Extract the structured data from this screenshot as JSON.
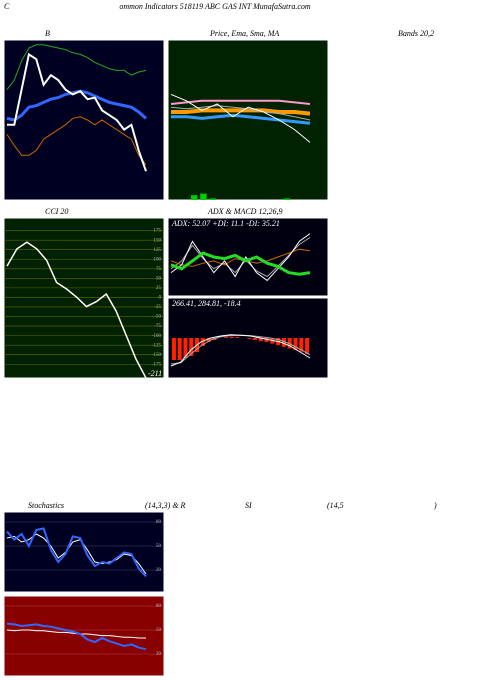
{
  "texts": {
    "c": "C",
    "title": "ommon Indicators 518119 ABC GAS INT MunafaSutra.com",
    "b": "B",
    "ma": "Price, Ema, Sma, MA",
    "bands": "Bands 20,2",
    "cci": "CCI 20",
    "adx": "ADX  & MACD 12,26,9",
    "stoch": "Stochastics",
    "stoch_p": "(14,3,3) & R",
    "si": "SI",
    "rsi_p": "(14,5",
    "close": ")",
    "watermark": "MunafaSutra.com"
  },
  "chart_data": [
    {
      "type": "line",
      "bg": "#000022",
      "ylim": [
        0,
        100
      ],
      "series": [
        {
          "color": "#22aa22",
          "width": 1,
          "values": [
            69,
            75,
            87,
            95,
            97,
            97,
            96,
            95,
            94,
            92,
            91,
            89,
            86,
            84,
            82,
            81,
            81,
            78,
            80,
            81
          ]
        },
        {
          "color": "#3366ff",
          "width": 3,
          "values": [
            51,
            50,
            53,
            58,
            59,
            61,
            63,
            64,
            66,
            67,
            68,
            67,
            65,
            63,
            61,
            60,
            59,
            58,
            55,
            51
          ]
        },
        {
          "color": "#cc6600",
          "width": 1,
          "values": [
            41,
            34,
            28,
            28,
            31,
            38,
            41,
            44,
            47,
            51,
            52,
            50,
            47,
            50,
            47,
            44,
            41,
            38,
            28,
            22
          ]
        },
        {
          "color": "#ffffff",
          "width": 2,
          "values": [
            47,
            47,
            69,
            91,
            88,
            72,
            78,
            75,
            69,
            66,
            68,
            63,
            64,
            56,
            53,
            50,
            44,
            47,
            31,
            18
          ]
        }
      ]
    },
    {
      "type": "line",
      "bg": "#002200",
      "ylim": [
        0,
        100
      ],
      "histogram": {
        "color": "#00cc00",
        "values": [
          0,
          0,
          3,
          4,
          1,
          0,
          0,
          0,
          0,
          0,
          0,
          0,
          1,
          0,
          0
        ]
      },
      "series": [
        {
          "color": "#ff99cc",
          "width": 2,
          "values": [
            60,
            61,
            62,
            62,
            62,
            62,
            62,
            62,
            61,
            60
          ]
        },
        {
          "color": "#ff9900",
          "width": 4,
          "values": [
            55,
            55,
            56,
            56,
            56,
            56,
            56,
            55,
            55,
            54
          ]
        },
        {
          "color": "#aaaaaa",
          "width": 1,
          "values": [
            58,
            57,
            58,
            59,
            58,
            57,
            55,
            54,
            52,
            50
          ]
        },
        {
          "color": "#3399ff",
          "width": 3,
          "values": [
            52,
            52,
            51,
            52,
            53,
            52,
            51,
            50,
            49,
            48
          ]
        },
        {
          "color": "#ffffff",
          "width": 1,
          "values": [
            66,
            62,
            56,
            60,
            52,
            58,
            55,
            50,
            44,
            36
          ]
        }
      ]
    },
    {
      "type": "line",
      "bg": "#002200",
      "ylim": [
        -211,
        208
      ],
      "yticks": [
        175,
        150,
        125,
        100,
        75,
        50,
        25,
        0,
        -25,
        -50,
        -75,
        -100,
        -125,
        -150,
        -175
      ],
      "grid": "#666600",
      "last_label": true,
      "series": [
        {
          "color": "#ffffff",
          "width": 1.5,
          "values": [
            82,
            127,
            145,
            127,
            97,
            39,
            22,
            1,
            -24,
            -11,
            9,
            -36,
            -99,
            -162,
            -211
          ]
        }
      ]
    },
    {
      "type": "line",
      "bg": "#000011",
      "ylim": [
        0,
        100
      ],
      "label": "ADX: 52.07 +DI: 11.1 -DI: 35.21",
      "series": [
        {
          "color": "#aaaaaa",
          "width": 1,
          "values": [
            35,
            45,
            65,
            48,
            35,
            42,
            30,
            46,
            32,
            25,
            38,
            52,
            66,
            75
          ]
        },
        {
          "color": "#cc6600",
          "width": 1,
          "values": [
            45,
            40,
            38,
            42,
            45,
            40,
            48,
            45,
            42,
            45,
            50,
            55,
            60,
            58
          ]
        },
        {
          "color": "#ffffff",
          "width": 1,
          "values": [
            30,
            40,
            70,
            50,
            30,
            45,
            25,
            50,
            30,
            20,
            35,
            50,
            70,
            80
          ]
        },
        {
          "color": "#22dd22",
          "width": 3,
          "values": [
            40,
            35,
            45,
            55,
            50,
            48,
            52,
            45,
            50,
            42,
            38,
            30,
            28,
            30
          ]
        }
      ]
    },
    {
      "type": "line",
      "bg": "#000011",
      "ylim": [
        -100,
        100
      ],
      "label": "266.41, 284.81, -18.4",
      "histogram": {
        "color": "#ff2200",
        "values": [
          -55,
          -55,
          -50,
          -45,
          -35,
          -20,
          -10,
          -5,
          0,
          2,
          3,
          2,
          0,
          -2,
          -5,
          -8,
          -10,
          -14,
          -18,
          -22,
          -26,
          -30,
          -34,
          -40
        ]
      },
      "series": [
        {
          "color": "#aaaaaa",
          "width": 1,
          "values": [
            -65,
            -62,
            -40,
            -20,
            -5,
            3,
            6,
            7,
            6,
            3,
            0,
            -5,
            -15,
            -28,
            -42
          ]
        },
        {
          "color": "#ffffff",
          "width": 1,
          "values": [
            -70,
            -60,
            -30,
            -10,
            0,
            5,
            8,
            7,
            5,
            0,
            -5,
            -10,
            -20,
            -35,
            -50
          ]
        }
      ]
    },
    {
      "type": "line",
      "bg": "#000022",
      "ylim": [
        -7.5,
        92.5
      ],
      "yticks": [
        80,
        50,
        20
      ],
      "grid": "#444466",
      "series": [
        {
          "color": "#ffffff",
          "width": 1,
          "values": [
            60,
            62,
            55,
            58,
            65,
            60,
            50,
            35,
            42,
            55,
            58,
            45,
            30,
            28,
            30,
            33,
            40,
            38,
            28,
            15
          ]
        },
        {
          "color": "#3366ff",
          "width": 2,
          "values": [
            68,
            58,
            65,
            50,
            70,
            72,
            45,
            30,
            40,
            62,
            60,
            38,
            25,
            30,
            28,
            35,
            42,
            40,
            22,
            12
          ]
        }
      ]
    },
    {
      "type": "line",
      "bg": "#880000",
      "ylim": [
        -7.5,
        92.5
      ],
      "yticks": [
        80,
        50,
        20
      ],
      "grid": "#aa4444",
      "series": [
        {
          "color": "#ffffff",
          "width": 1,
          "values": [
            50,
            49,
            50,
            50,
            49,
            49,
            48,
            47,
            47,
            46,
            45,
            45,
            44,
            43,
            43,
            42,
            41,
            41,
            40,
            40
          ]
        },
        {
          "color": "#3366ff",
          "width": 2,
          "values": [
            58,
            57,
            55,
            56,
            57,
            55,
            54,
            52,
            50,
            48,
            45,
            38,
            35,
            40,
            36,
            33,
            30,
            32,
            28,
            26
          ]
        }
      ]
    }
  ]
}
